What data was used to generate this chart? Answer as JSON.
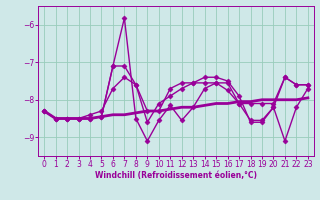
{
  "xlabel": "Windchill (Refroidissement éolien,°C)",
  "background_color": "#cfe8e8",
  "grid_color": "#99ccbb",
  "line_color": "#990099",
  "xlim": [
    -0.5,
    23.5
  ],
  "ylim": [
    -9.5,
    -5.5
  ],
  "yticks": [
    -9,
    -8,
    -7,
    -6
  ],
  "xticks": [
    0,
    1,
    2,
    3,
    4,
    5,
    6,
    7,
    8,
    9,
    10,
    11,
    12,
    13,
    14,
    15,
    16,
    17,
    18,
    19,
    20,
    21,
    22,
    23
  ],
  "series": [
    {
      "x": [
        0,
        1,
        2,
        3,
        4,
        5,
        6,
        7,
        8,
        9,
        10,
        11,
        12,
        13,
        14,
        15,
        16,
        17,
        18,
        19,
        20,
        21,
        22,
        23
      ],
      "y": [
        -8.3,
        -8.5,
        -8.5,
        -8.5,
        -8.5,
        -8.45,
        -8.4,
        -8.4,
        -8.35,
        -8.3,
        -8.3,
        -8.25,
        -8.2,
        -8.2,
        -8.15,
        -8.1,
        -8.1,
        -8.05,
        -8.05,
        -8.0,
        -8.0,
        -8.0,
        -8.0,
        -7.95
      ],
      "marker": null,
      "markersize": 0,
      "linewidth": 2.0
    },
    {
      "x": [
        0,
        1,
        2,
        3,
        4,
        5,
        6,
        7,
        8,
        9,
        10,
        11,
        12,
        13,
        14,
        15,
        16,
        17,
        18,
        19,
        20,
        21,
        22,
        23
      ],
      "y": [
        -8.3,
        -8.5,
        -8.5,
        -8.5,
        -8.5,
        -8.45,
        -7.1,
        -5.82,
        -8.5,
        -9.1,
        -8.55,
        -8.15,
        -8.55,
        -8.2,
        -7.7,
        -7.55,
        -7.75,
        -8.1,
        -8.55,
        -8.55,
        -8.2,
        -9.1,
        -8.2,
        -7.7
      ],
      "marker": "D",
      "markersize": 2.5,
      "linewidth": 1.0
    },
    {
      "x": [
        0,
        1,
        2,
        3,
        4,
        5,
        6,
        7,
        8,
        9,
        10,
        11,
        12,
        13,
        14,
        15,
        16,
        17,
        18,
        19,
        20,
        21,
        22,
        23
      ],
      "y": [
        -8.3,
        -8.5,
        -8.5,
        -8.5,
        -8.5,
        -8.45,
        -7.1,
        -7.1,
        -7.6,
        -8.3,
        -8.3,
        -7.7,
        -7.55,
        -7.55,
        -7.55,
        -7.55,
        -7.55,
        -8.1,
        -8.1,
        -8.1,
        -8.1,
        -7.4,
        -7.6,
        -7.6
      ],
      "marker": "D",
      "markersize": 2.5,
      "linewidth": 1.0
    },
    {
      "x": [
        0,
        1,
        2,
        3,
        4,
        5,
        6,
        7,
        8,
        9,
        10,
        11,
        12,
        13,
        14,
        15,
        16,
        17,
        18,
        19,
        20,
        21,
        22,
        23
      ],
      "y": [
        -8.3,
        -8.5,
        -8.5,
        -8.5,
        -8.4,
        -8.3,
        -7.7,
        -7.4,
        -7.6,
        -8.6,
        -8.1,
        -7.9,
        -7.7,
        -7.55,
        -7.4,
        -7.4,
        -7.5,
        -7.9,
        -8.6,
        -8.6,
        -8.2,
        -7.4,
        -7.6,
        -7.6
      ],
      "marker": "D",
      "markersize": 2.5,
      "linewidth": 1.0
    }
  ]
}
